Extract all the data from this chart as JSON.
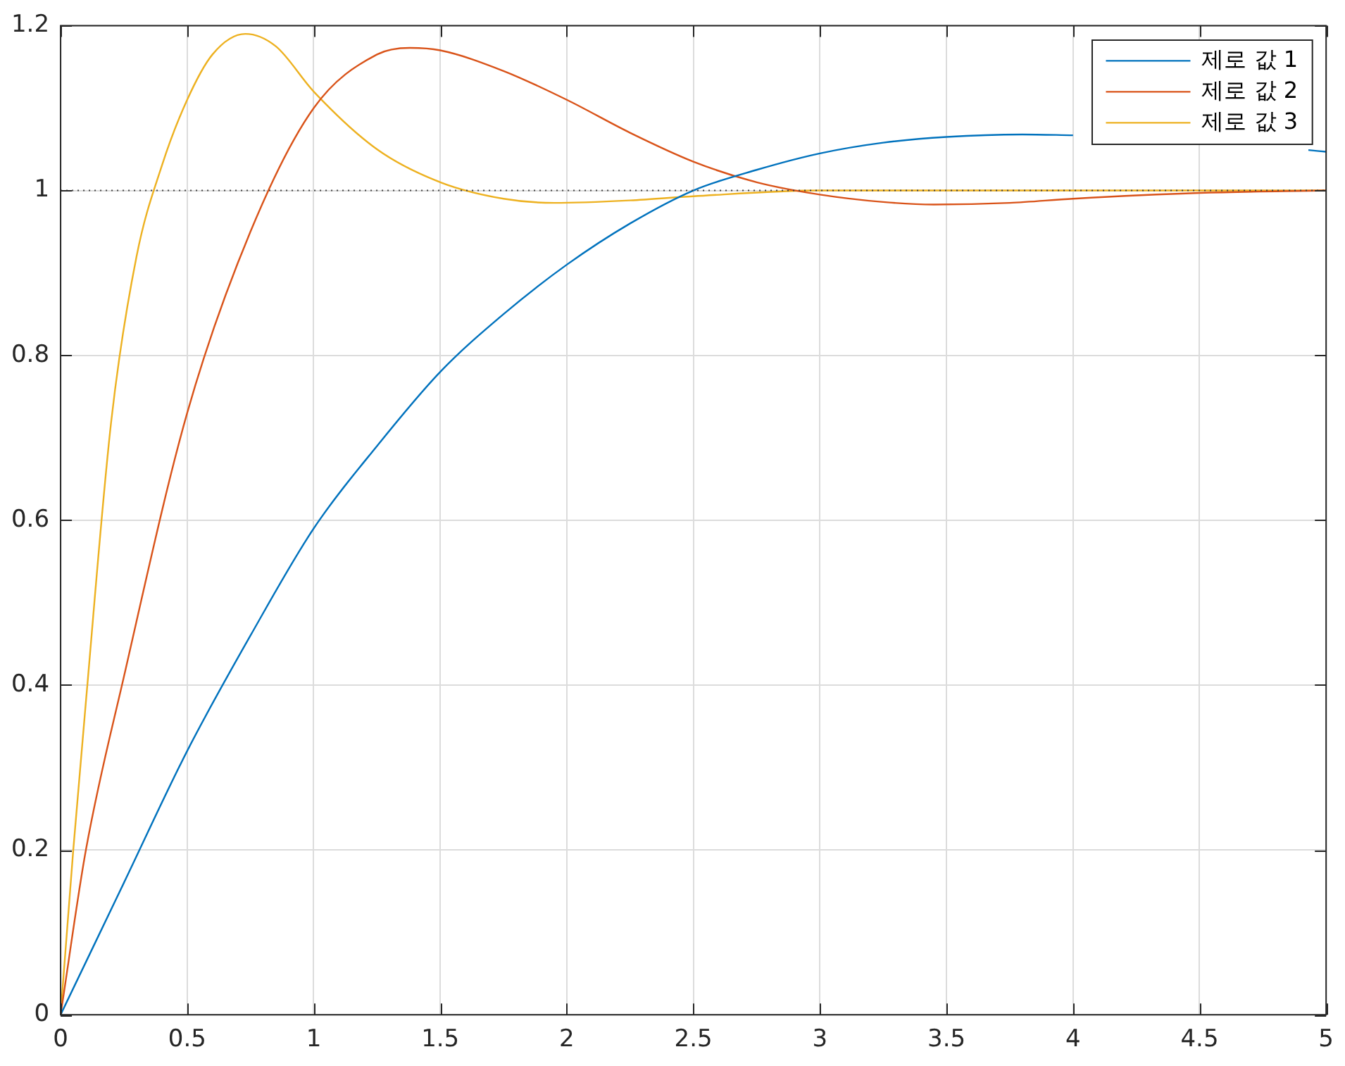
{
  "chart_data": {
    "type": "line",
    "series": [
      {
        "name": "제로 값 1",
        "color": "#0072bd",
        "x": [
          0,
          0.25,
          0.5,
          0.75,
          1,
          1.25,
          1.5,
          1.75,
          2,
          2.25,
          2.5,
          2.75,
          3,
          3.25,
          3.5,
          3.8,
          4,
          4.25,
          4.5,
          4.93,
          5
        ],
        "values": [
          0,
          0.16,
          0.32,
          0.46,
          0.59,
          0.69,
          0.78,
          0.85,
          0.91,
          0.96,
          1.0,
          1.025,
          1.045,
          1.058,
          1.065,
          1.068,
          1.067,
          null,
          null,
          1.049,
          1.047
        ]
      },
      {
        "name": "제로 값 2",
        "color": "#d95319",
        "x": [
          0,
          0.1,
          0.25,
          0.5,
          0.75,
          1,
          1.25,
          1.38,
          1.5,
          1.75,
          2,
          2.25,
          2.5,
          2.75,
          3,
          3.25,
          3.45,
          3.75,
          4,
          4.5,
          5
        ],
        "values": [
          0,
          0.2,
          0.41,
          0.73,
          0.95,
          1.1,
          1.165,
          1.173,
          1.17,
          1.145,
          1.11,
          1.07,
          1.035,
          1.01,
          0.995,
          0.986,
          0.983,
          0.985,
          0.99,
          0.997,
          1.0
        ]
      },
      {
        "name": "제로 값 3",
        "color": "#edb120",
        "x": [
          0,
          0.05,
          0.1,
          0.2,
          0.3,
          0.4,
          0.5,
          0.6,
          0.73,
          0.85,
          1,
          1.25,
          1.5,
          1.75,
          1.95,
          2.25,
          2.5,
          3,
          4,
          5
        ],
        "values": [
          0,
          0.2,
          0.38,
          0.72,
          0.92,
          1.03,
          1.11,
          1.165,
          1.19,
          1.175,
          1.12,
          1.05,
          1.01,
          0.99,
          0.985,
          0.988,
          0.993,
          1.0,
          1.0,
          1.0
        ]
      }
    ],
    "xlim": [
      0,
      5
    ],
    "xticks": [
      0,
      0.5,
      1,
      1.5,
      2,
      2.5,
      3,
      3.5,
      4,
      4.5,
      5
    ],
    "ylim": [
      0,
      1.2
    ],
    "yticks": [
      0,
      0.2,
      0.4,
      0.6,
      0.8,
      1,
      1.2
    ],
    "ref_lines": [
      {
        "axis": "y",
        "value": 1,
        "color": "#404040",
        "line_style": "dotted"
      }
    ],
    "grid": true,
    "legend": "top right",
    "marker": "none",
    "line_style": "solid"
  }
}
